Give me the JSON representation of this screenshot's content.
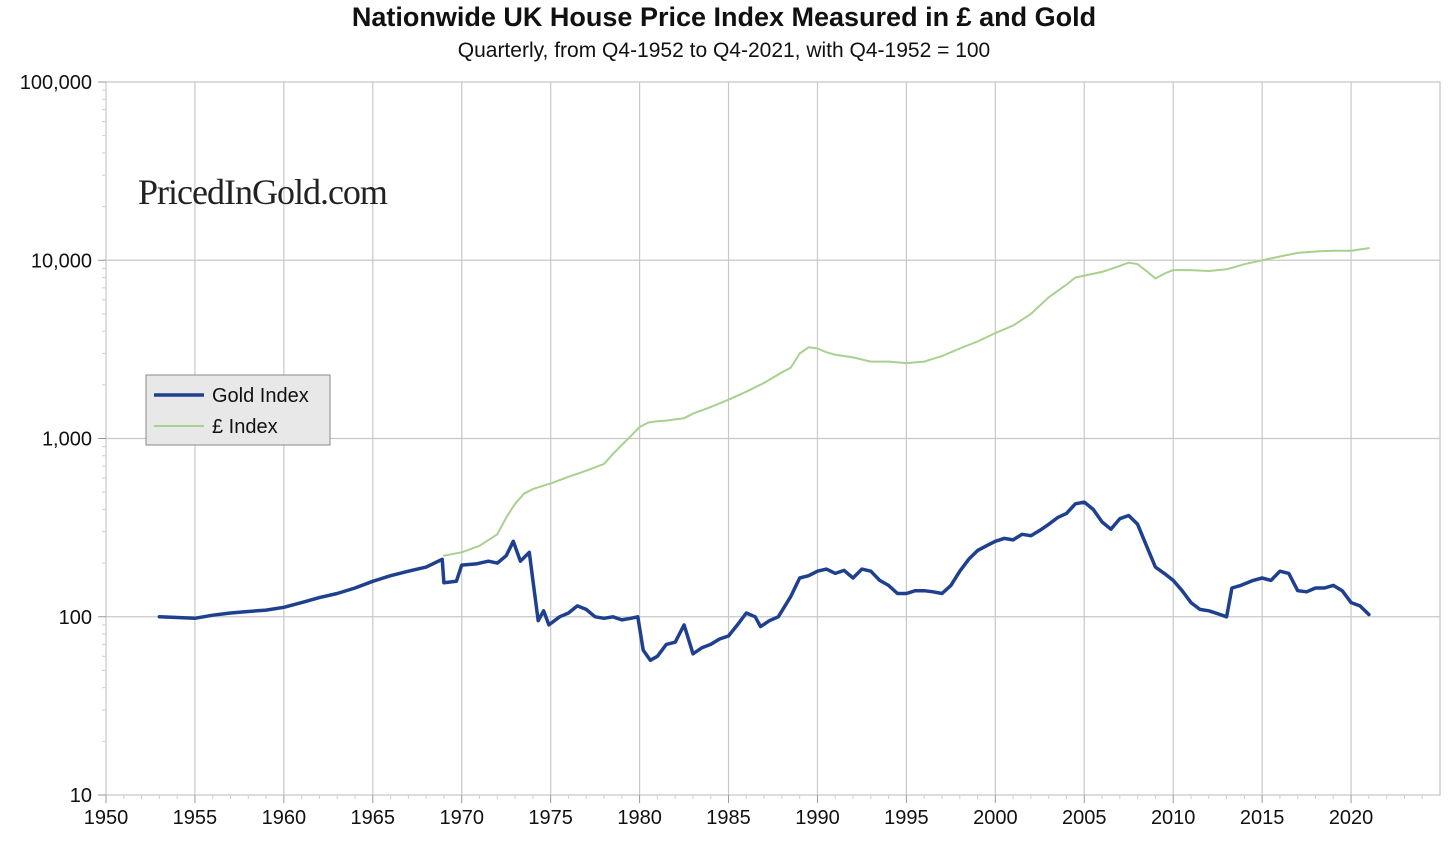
{
  "chart_data": {
    "type": "line",
    "title": "Nationwide UK House Price Index Measured in £ and Gold",
    "subtitle": "Quarterly, from Q4-1952 to Q4-2021, with Q4-1952 = 100",
    "watermark": "PricedInGold.com",
    "xlabel": "",
    "ylabel": "",
    "xlim": [
      1950,
      2025
    ],
    "ylim": [
      10,
      100000
    ],
    "y_scale": "log",
    "grid": true,
    "legend_position": "left",
    "x_ticks": [
      1950,
      1955,
      1960,
      1965,
      1970,
      1975,
      1980,
      1985,
      1990,
      1995,
      2000,
      2005,
      2010,
      2015,
      2020
    ],
    "y_ticks": [
      {
        "value": 10,
        "label": "10"
      },
      {
        "value": 100,
        "label": "100"
      },
      {
        "value": 1000,
        "label": "1,000"
      },
      {
        "value": 10000,
        "label": "10,000"
      },
      {
        "value": 100000,
        "label": "100,000"
      }
    ],
    "series": [
      {
        "name": "Gold Index",
        "color": "#1f3f8f",
        "points": [
          [
            1953.0,
            100
          ],
          [
            1954.0,
            99
          ],
          [
            1955.0,
            98
          ],
          [
            1956.0,
            102
          ],
          [
            1957.0,
            105
          ],
          [
            1958.0,
            107
          ],
          [
            1959.0,
            109
          ],
          [
            1960.0,
            113
          ],
          [
            1961.0,
            120
          ],
          [
            1962.0,
            128
          ],
          [
            1963.0,
            135
          ],
          [
            1964.0,
            145
          ],
          [
            1965.0,
            158
          ],
          [
            1966.0,
            170
          ],
          [
            1967.0,
            180
          ],
          [
            1968.0,
            190
          ],
          [
            1968.9,
            210
          ],
          [
            1969.0,
            155
          ],
          [
            1969.7,
            158
          ],
          [
            1970.0,
            195
          ],
          [
            1970.8,
            198
          ],
          [
            1971.5,
            205
          ],
          [
            1972.0,
            200
          ],
          [
            1972.5,
            220
          ],
          [
            1972.9,
            265
          ],
          [
            1973.3,
            205
          ],
          [
            1973.8,
            230
          ],
          [
            1974.0,
            160
          ],
          [
            1974.3,
            95
          ],
          [
            1974.6,
            108
          ],
          [
            1974.9,
            90
          ],
          [
            1975.5,
            100
          ],
          [
            1976.0,
            105
          ],
          [
            1976.5,
            115
          ],
          [
            1977.0,
            110
          ],
          [
            1977.5,
            100
          ],
          [
            1978.0,
            98
          ],
          [
            1978.5,
            100
          ],
          [
            1979.0,
            96
          ],
          [
            1979.5,
            98
          ],
          [
            1979.9,
            100
          ],
          [
            1980.2,
            65
          ],
          [
            1980.6,
            57
          ],
          [
            1981.0,
            60
          ],
          [
            1981.5,
            70
          ],
          [
            1982.0,
            72
          ],
          [
            1982.5,
            90
          ],
          [
            1983.0,
            62
          ],
          [
            1983.5,
            67
          ],
          [
            1984.0,
            70
          ],
          [
            1984.5,
            75
          ],
          [
            1985.0,
            78
          ],
          [
            1985.5,
            90
          ],
          [
            1986.0,
            105
          ],
          [
            1986.5,
            100
          ],
          [
            1986.8,
            88
          ],
          [
            1987.3,
            95
          ],
          [
            1987.8,
            100
          ],
          [
            1988.5,
            130
          ],
          [
            1989.0,
            165
          ],
          [
            1989.5,
            170
          ],
          [
            1990.0,
            180
          ],
          [
            1990.5,
            185
          ],
          [
            1991.0,
            175
          ],
          [
            1991.5,
            182
          ],
          [
            1992.0,
            165
          ],
          [
            1992.5,
            185
          ],
          [
            1993.0,
            180
          ],
          [
            1993.5,
            160
          ],
          [
            1994.0,
            150
          ],
          [
            1994.5,
            135
          ],
          [
            1995.0,
            135
          ],
          [
            1995.5,
            140
          ],
          [
            1996.0,
            140
          ],
          [
            1996.5,
            138
          ],
          [
            1997.0,
            135
          ],
          [
            1997.5,
            150
          ],
          [
            1998.0,
            180
          ],
          [
            1998.5,
            210
          ],
          [
            1999.0,
            235
          ],
          [
            1999.5,
            250
          ],
          [
            2000.0,
            265
          ],
          [
            2000.5,
            275
          ],
          [
            2001.0,
            270
          ],
          [
            2001.5,
            290
          ],
          [
            2002.0,
            285
          ],
          [
            2002.5,
            305
          ],
          [
            2003.0,
            330
          ],
          [
            2003.5,
            360
          ],
          [
            2004.0,
            380
          ],
          [
            2004.5,
            430
          ],
          [
            2005.0,
            440
          ],
          [
            2005.5,
            400
          ],
          [
            2006.0,
            340
          ],
          [
            2006.5,
            310
          ],
          [
            2007.0,
            355
          ],
          [
            2007.5,
            370
          ],
          [
            2008.0,
            330
          ],
          [
            2008.5,
            250
          ],
          [
            2009.0,
            190
          ],
          [
            2009.5,
            175
          ],
          [
            2010.0,
            160
          ],
          [
            2010.5,
            140
          ],
          [
            2011.0,
            120
          ],
          [
            2011.5,
            110
          ],
          [
            2012.0,
            108
          ],
          [
            2012.5,
            104
          ],
          [
            2013.0,
            100
          ],
          [
            2013.3,
            145
          ],
          [
            2013.8,
            150
          ],
          [
            2014.5,
            160
          ],
          [
            2015.0,
            165
          ],
          [
            2015.5,
            160
          ],
          [
            2016.0,
            180
          ],
          [
            2016.5,
            175
          ],
          [
            2017.0,
            140
          ],
          [
            2017.5,
            138
          ],
          [
            2018.0,
            145
          ],
          [
            2018.5,
            145
          ],
          [
            2019.0,
            150
          ],
          [
            2019.5,
            140
          ],
          [
            2020.0,
            120
          ],
          [
            2020.5,
            115
          ],
          [
            2021.0,
            103
          ]
        ]
      },
      {
        "name": "£ Index",
        "color": "#a9d18e",
        "points": [
          [
            1969.0,
            220
          ],
          [
            1970.0,
            230
          ],
          [
            1971.0,
            250
          ],
          [
            1972.0,
            290
          ],
          [
            1972.5,
            360
          ],
          [
            1973.0,
            430
          ],
          [
            1973.5,
            490
          ],
          [
            1974.0,
            520
          ],
          [
            1974.5,
            540
          ],
          [
            1975.0,
            560
          ],
          [
            1976.0,
            610
          ],
          [
            1977.0,
            660
          ],
          [
            1978.0,
            720
          ],
          [
            1978.5,
            820
          ],
          [
            1979.0,
            920
          ],
          [
            1979.5,
            1030
          ],
          [
            1980.0,
            1160
          ],
          [
            1980.5,
            1230
          ],
          [
            1981.0,
            1250
          ],
          [
            1981.5,
            1260
          ],
          [
            1982.0,
            1280
          ],
          [
            1982.5,
            1300
          ],
          [
            1983.0,
            1380
          ],
          [
            1984.0,
            1500
          ],
          [
            1985.0,
            1650
          ],
          [
            1986.0,
            1830
          ],
          [
            1987.0,
            2050
          ],
          [
            1988.0,
            2350
          ],
          [
            1988.5,
            2500
          ],
          [
            1989.0,
            3000
          ],
          [
            1989.5,
            3250
          ],
          [
            1990.0,
            3200
          ],
          [
            1990.5,
            3050
          ],
          [
            1991.0,
            2950
          ],
          [
            1992.0,
            2850
          ],
          [
            1993.0,
            2700
          ],
          [
            1994.0,
            2700
          ],
          [
            1995.0,
            2650
          ],
          [
            1996.0,
            2700
          ],
          [
            1997.0,
            2900
          ],
          [
            1998.0,
            3200
          ],
          [
            1999.0,
            3500
          ],
          [
            2000.0,
            3900
          ],
          [
            2001.0,
            4300
          ],
          [
            2002.0,
            5000
          ],
          [
            2003.0,
            6200
          ],
          [
            2004.0,
            7300
          ],
          [
            2004.5,
            8000
          ],
          [
            2005.0,
            8200
          ],
          [
            2006.0,
            8600
          ],
          [
            2007.0,
            9300
          ],
          [
            2007.5,
            9700
          ],
          [
            2008.0,
            9500
          ],
          [
            2008.5,
            8700
          ],
          [
            2009.0,
            7900
          ],
          [
            2009.5,
            8400
          ],
          [
            2010.0,
            8800
          ],
          [
            2011.0,
            8800
          ],
          [
            2012.0,
            8700
          ],
          [
            2013.0,
            8900
          ],
          [
            2014.0,
            9500
          ],
          [
            2015.0,
            10000
          ],
          [
            2016.0,
            10500
          ],
          [
            2017.0,
            11000
          ],
          [
            2018.0,
            11200
          ],
          [
            2019.0,
            11300
          ],
          [
            2020.0,
            11300
          ],
          [
            2021.0,
            11700
          ]
        ]
      }
    ]
  }
}
